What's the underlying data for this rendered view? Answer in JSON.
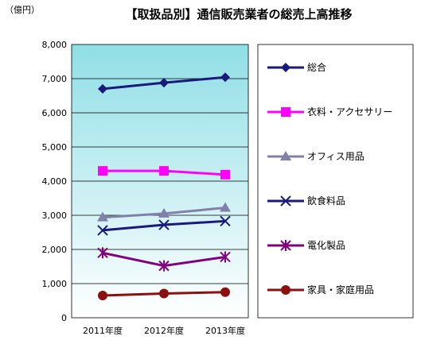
{
  "chart_data": {
    "type": "line",
    "title": "【取扱品別】通信販売業者の総売上高推移",
    "unit_label": "（億円）",
    "categories": [
      "2011年度",
      "2012年度",
      "2013年度"
    ],
    "ylim": [
      0,
      8000
    ],
    "yticks": [
      "0",
      "1,000",
      "2,000",
      "3,000",
      "4,000",
      "5,000",
      "6,000",
      "7,000",
      "8,000"
    ],
    "ytick_values": [
      0,
      1000,
      2000,
      3000,
      4000,
      5000,
      6000,
      7000,
      8000
    ],
    "grid": true,
    "legend_position": "right",
    "series": [
      {
        "name": "総合",
        "values": [
          6700,
          6880,
          7040
        ],
        "color": "#1a1a7a",
        "marker": "diamond"
      },
      {
        "name": "衣料・アクセサリー",
        "values": [
          4300,
          4300,
          4190
        ],
        "color": "#ff00ff",
        "marker": "square"
      },
      {
        "name": "オフィス用品",
        "values": [
          2940,
          3050,
          3220
        ],
        "color": "#8080a8",
        "marker": "triangle"
      },
      {
        "name": "飲食料品",
        "values": [
          2560,
          2720,
          2830
        ],
        "color": "#1a1a7a",
        "marker": "x"
      },
      {
        "name": "電化製品",
        "values": [
          1900,
          1520,
          1780
        ],
        "color": "#800080",
        "marker": "asterisk"
      },
      {
        "name": "家具・家庭用品",
        "values": [
          650,
          710,
          750
        ],
        "color": "#8b1010",
        "marker": "circle"
      }
    ]
  }
}
